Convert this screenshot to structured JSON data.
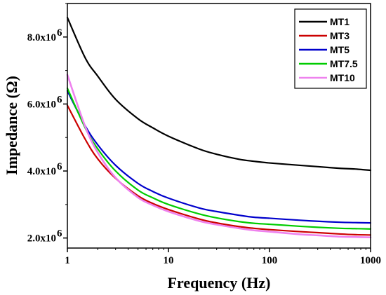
{
  "chart_data": {
    "type": "line",
    "xlabel": "Frequency (Hz)",
    "ylabel": "Impedance (Ω)",
    "xscale": "log",
    "xlim": [
      1,
      1000
    ],
    "ylim": [
      1700000,
      9000000
    ],
    "xticks": [
      {
        "value": 1,
        "label": "1"
      },
      {
        "value": 10,
        "label": "10"
      },
      {
        "value": 100,
        "label": "100"
      },
      {
        "value": 1000,
        "label": "1000"
      }
    ],
    "yticks": [
      {
        "value": 2000000,
        "mantissa": "2.0x10",
        "exp": "6"
      },
      {
        "value": 4000000,
        "mantissa": "4.0x10",
        "exp": "6"
      },
      {
        "value": 6000000,
        "mantissa": "6.0x10",
        "exp": "6"
      },
      {
        "value": 8000000,
        "mantissa": "8.0x10",
        "exp": "6"
      }
    ],
    "grid": false,
    "legend_position": "top-right",
    "x": [
      1,
      1.5,
      2,
      3,
      5,
      7,
      10,
      20,
      30,
      50,
      70,
      100,
      200,
      300,
      500,
      700,
      1000
    ],
    "series": [
      {
        "name": "MT1",
        "color": "#000000",
        "values": [
          8580000,
          7380000,
          6830000,
          6140000,
          5560000,
          5290000,
          5040000,
          4660000,
          4500000,
          4350000,
          4290000,
          4240000,
          4170000,
          4130000,
          4080000,
          4060000,
          4020000
        ]
      },
      {
        "name": "MT3",
        "color": "#cc0000",
        "values": [
          5960000,
          4950000,
          4360000,
          3780000,
          3260000,
          3030000,
          2850000,
          2570000,
          2450000,
          2340000,
          2290000,
          2250000,
          2190000,
          2160000,
          2120000,
          2100000,
          2090000
        ]
      },
      {
        "name": "MT5",
        "color": "#0000cc",
        "values": [
          6390000,
          5350000,
          4780000,
          4170000,
          3630000,
          3390000,
          3190000,
          2900000,
          2790000,
          2680000,
          2620000,
          2590000,
          2530000,
          2500000,
          2470000,
          2460000,
          2450000
        ]
      },
      {
        "name": "MT7.5",
        "color": "#00cc00",
        "values": [
          6470000,
          5290000,
          4660000,
          4000000,
          3430000,
          3200000,
          3000000,
          2720000,
          2600000,
          2490000,
          2440000,
          2410000,
          2350000,
          2320000,
          2290000,
          2280000,
          2270000
        ]
      },
      {
        "name": "MT10",
        "color": "#ee82ee",
        "values": [
          6870000,
          5330000,
          4550000,
          3800000,
          3210000,
          2980000,
          2790000,
          2510000,
          2400000,
          2290000,
          2230000,
          2190000,
          2110000,
          2080000,
          2040000,
          2030000,
          2020000
        ]
      }
    ]
  }
}
